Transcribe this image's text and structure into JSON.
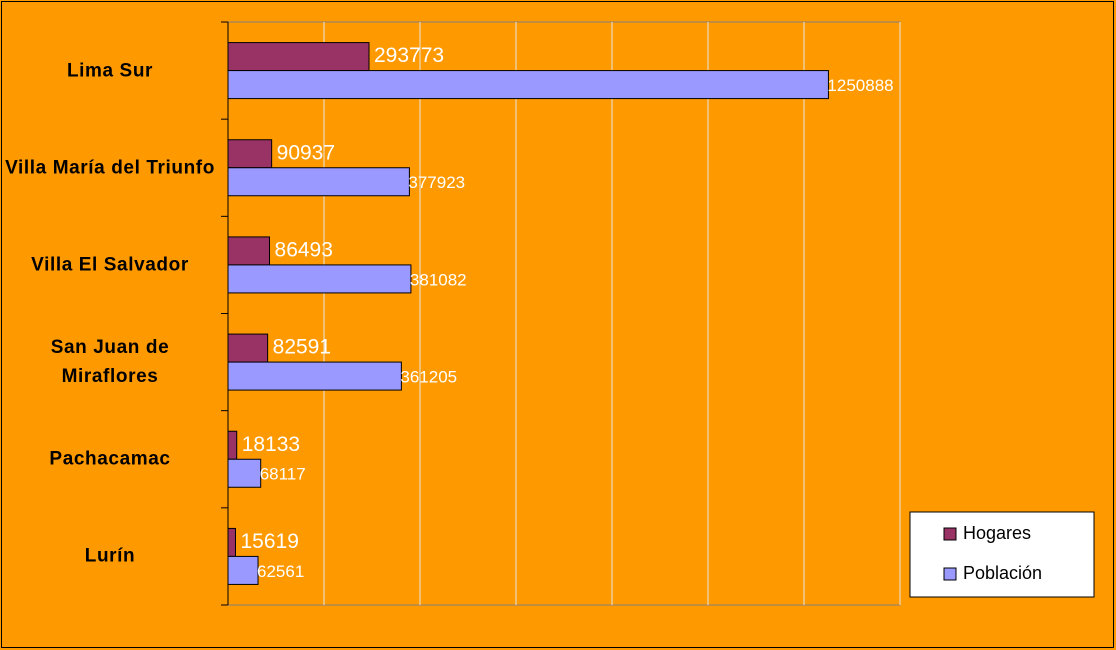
{
  "chart_data": {
    "type": "bar",
    "orientation": "horizontal",
    "categories": [
      "Lima Sur",
      "Villa María del Triunfo",
      "Villa El Salvador",
      "San Juan de Miraflores",
      "Pachacamac",
      "Lurín"
    ],
    "series": [
      {
        "name": "Hogares",
        "color": "#993366",
        "values": [
          293773,
          90937,
          86493,
          82591,
          18133,
          15619
        ]
      },
      {
        "name": "Población",
        "color": "#9999ff",
        "values": [
          1250888,
          377923,
          381082,
          361205,
          68117,
          62561
        ]
      }
    ],
    "xlim": [
      0,
      1400000
    ],
    "xticks": [
      0,
      200000,
      400000,
      600000,
      800000,
      1000000,
      1200000,
      1400000
    ],
    "grid": true,
    "legend": "bottom-right"
  }
}
